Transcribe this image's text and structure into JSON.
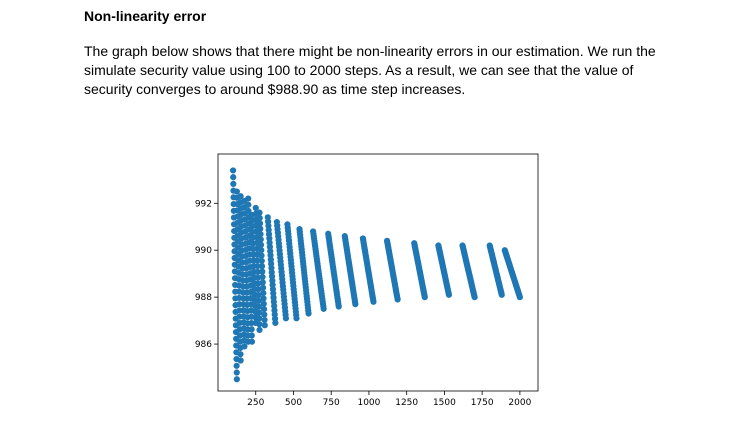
{
  "heading": "Non-linearity error",
  "paragraph": "The graph below shows that there might be non-linearity errors in our estimation. We run the simulate security value using 100 to 2000 steps. As a result, we can see that the value of security converges to around $988.90 as time step increases.",
  "chart_data": {
    "type": "scatter",
    "title": "",
    "xlabel": "",
    "ylabel": "",
    "xlim": [
      0,
      2120
    ],
    "ylim": [
      984.0,
      994.1
    ],
    "xticks": [
      250,
      500,
      750,
      1000,
      1250,
      1500,
      1750,
      2000
    ],
    "xtick_labels": [
      "250",
      "500",
      "750",
      "1000",
      "1250",
      "1500",
      "1750",
      "2000"
    ],
    "yticks": [
      986,
      988,
      990,
      992
    ],
    "ytick_labels": [
      "986",
      "988",
      "990",
      "992"
    ],
    "grid": false,
    "marker_color": "#1f77b4",
    "series": [
      {
        "clusters": [
          {
            "x_start": 100,
            "x_end": 125,
            "y_high": 993.4,
            "y_low": 984.5,
            "count": 32
          },
          {
            "x_start": 125,
            "x_end": 150,
            "y_high": 992.5,
            "y_low": 985.3,
            "count": 28
          },
          {
            "x_start": 150,
            "x_end": 175,
            "y_high": 992.3,
            "y_low": 985.9,
            "count": 26
          },
          {
            "x_start": 175,
            "x_end": 200,
            "y_high": 992.1,
            "y_low": 986.1,
            "count": 24
          },
          {
            "x_start": 200,
            "x_end": 225,
            "y_high": 992.2,
            "y_low": 986.1,
            "count": 24
          },
          {
            "x_start": 225,
            "x_end": 250,
            "y_high": 991.5,
            "y_low": 986.9,
            "count": 20
          },
          {
            "x_start": 250,
            "x_end": 275,
            "y_high": 991.8,
            "y_low": 986.6,
            "count": 22
          },
          {
            "x_start": 275,
            "x_end": 310,
            "y_high": 991.6,
            "y_low": 986.8,
            "count": 22
          },
          {
            "x_start": 330,
            "x_end": 380,
            "y_high": 991.4,
            "y_low": 986.9,
            "count": 26
          },
          {
            "x_start": 390,
            "x_end": 450,
            "y_high": 991.2,
            "y_low": 987.1,
            "count": 28
          },
          {
            "x_start": 460,
            "x_end": 520,
            "y_high": 991.1,
            "y_low": 987.1,
            "count": 30
          },
          {
            "x_start": 540,
            "x_end": 600,
            "y_high": 990.9,
            "y_low": 987.3,
            "count": 30
          },
          {
            "x_start": 630,
            "x_end": 700,
            "y_high": 990.8,
            "y_low": 987.5,
            "count": 32
          },
          {
            "x_start": 730,
            "x_end": 800,
            "y_high": 990.7,
            "y_low": 987.6,
            "count": 32
          },
          {
            "x_start": 840,
            "x_end": 910,
            "y_high": 990.6,
            "y_low": 987.7,
            "count": 34
          },
          {
            "x_start": 960,
            "x_end": 1030,
            "y_high": 990.5,
            "y_low": 987.8,
            "count": 34
          },
          {
            "x_start": 1120,
            "x_end": 1190,
            "y_high": 990.4,
            "y_low": 987.9,
            "count": 34
          },
          {
            "x_start": 1300,
            "x_end": 1370,
            "y_high": 990.3,
            "y_low": 988.0,
            "count": 34
          },
          {
            "x_start": 1460,
            "x_end": 1530,
            "y_high": 990.2,
            "y_low": 988.1,
            "count": 34
          },
          {
            "x_start": 1620,
            "x_end": 1700,
            "y_high": 990.2,
            "y_low": 988.0,
            "count": 36
          },
          {
            "x_start": 1800,
            "x_end": 1880,
            "y_high": 990.2,
            "y_low": 988.1,
            "count": 36
          },
          {
            "x_start": 1900,
            "x_end": 2000,
            "y_high": 990.0,
            "y_low": 988.0,
            "count": 36
          }
        ]
      }
    ]
  }
}
